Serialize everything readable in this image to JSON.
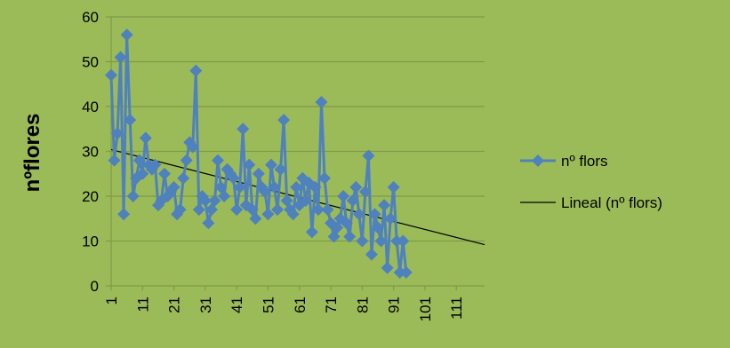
{
  "colors": {
    "background": "#9bbb59",
    "series": "#4f81bd",
    "trend": "#000000",
    "gridline": "#7f9a44",
    "axis": "#7f9a44",
    "text": "#000000"
  },
  "chart_data": {
    "type": "line",
    "title": "",
    "xlabel": "",
    "ylabel": "nºflores",
    "ylim": [
      0,
      60
    ],
    "yticks": [
      0,
      10,
      20,
      30,
      40,
      50,
      60
    ],
    "xlim": [
      1,
      120
    ],
    "xticks": [
      1,
      11,
      21,
      31,
      41,
      51,
      61,
      71,
      81,
      91,
      101,
      111
    ],
    "grid": "horizontal",
    "legend_position": "right",
    "legend": [
      {
        "label": "nº flors",
        "kind": "series",
        "marker": "diamond-icon"
      },
      {
        "label": "Lineal (nº flors)",
        "kind": "trendline"
      }
    ],
    "series": [
      {
        "name": "nº flors",
        "marker": "diamond",
        "x": [
          1,
          2,
          3,
          4,
          5,
          6,
          7,
          8,
          9,
          10,
          11,
          12,
          13,
          14,
          15,
          16,
          17,
          18,
          19,
          20,
          21,
          22,
          23,
          24,
          25,
          26,
          27,
          28,
          29,
          30,
          31,
          32,
          33,
          34,
          35,
          36,
          37,
          38,
          39,
          40,
          41,
          42,
          43,
          44,
          45,
          46,
          47,
          48,
          49,
          50,
          51,
          52,
          53,
          54,
          55,
          56,
          57,
          58,
          59,
          60,
          61,
          62,
          63,
          64,
          65,
          66,
          67,
          68,
          69,
          70,
          71,
          72,
          73,
          74,
          75,
          76,
          77,
          78,
          79,
          80,
          81,
          82,
          83,
          84,
          85,
          86,
          87,
          88,
          89,
          90,
          91,
          92,
          93,
          94,
          95
        ],
        "values": [
          47,
          28,
          34,
          51,
          16,
          56,
          37,
          20,
          24,
          28,
          25,
          33,
          27,
          26,
          27,
          18,
          19,
          25,
          20,
          21,
          22,
          16,
          17,
          24,
          28,
          32,
          31,
          48,
          17,
          20,
          19,
          14,
          17,
          19,
          28,
          22,
          20,
          26,
          25,
          24,
          17,
          22,
          35,
          18,
          27,
          17,
          15,
          25,
          22,
          21,
          16,
          27,
          22,
          17,
          26,
          37,
          19,
          17,
          16,
          22,
          18,
          24,
          19,
          23,
          12,
          22,
          17,
          41,
          24,
          17,
          14,
          11,
          13,
          15,
          20,
          14,
          11,
          19,
          22,
          16,
          10,
          21,
          29,
          7,
          16,
          13,
          10,
          18,
          4,
          15,
          22,
          10,
          3,
          10,
          3
        ]
      }
    ],
    "trendline": {
      "name": "Lineal (nº flors)",
      "type": "linear",
      "x": [
        1,
        120
      ],
      "y": [
        30.4,
        9.2
      ]
    }
  }
}
